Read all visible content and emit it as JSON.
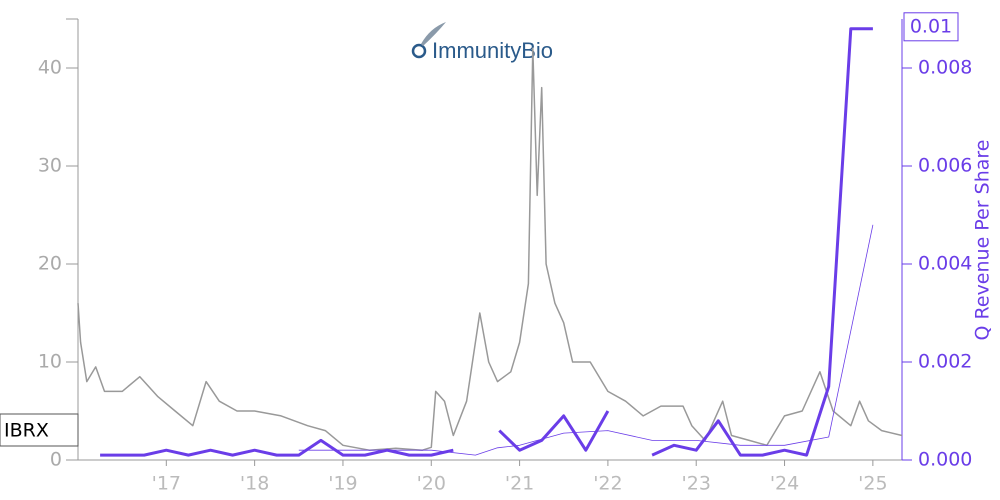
{
  "chart_data": {
    "type": "line",
    "logo": "ImmunityBio",
    "y2label": "Q Revenue Per Share",
    "xlim": [
      2016.0,
      2025.33
    ],
    "xticks": [
      {
        "value": 2017,
        "label": "'17"
      },
      {
        "value": 2018,
        "label": "'18"
      },
      {
        "value": 2019,
        "label": "'19"
      },
      {
        "value": 2020,
        "label": "'20"
      },
      {
        "value": 2021,
        "label": "'21"
      },
      {
        "value": 2022,
        "label": "'22"
      },
      {
        "value": 2023,
        "label": "'23"
      },
      {
        "value": 2024,
        "label": "'24"
      },
      {
        "value": 2025,
        "label": "'25"
      }
    ],
    "ylim": [
      0,
      45
    ],
    "yticks": [
      0,
      10,
      20,
      30,
      40
    ],
    "y2lim": [
      0,
      0.009
    ],
    "y2ticks": [
      {
        "value": 0,
        "label": "0.000"
      },
      0.002,
      0.004,
      0.006,
      0.008
    ],
    "series": [
      {
        "name": "IBRX",
        "color": "#999999",
        "width": 1.5,
        "x": [
          2016.0,
          2016.03,
          2016.1,
          2016.2,
          2016.3,
          2016.5,
          2016.7,
          2016.9,
          2017.1,
          2017.3,
          2017.45,
          2017.6,
          2017.8,
          2018.0,
          2018.3,
          2018.6,
          2018.8,
          2019.0,
          2019.3,
          2019.6,
          2019.9,
          2020.0,
          2020.05,
          2020.15,
          2020.25,
          2020.4,
          2020.5,
          2020.55,
          2020.65,
          2020.75,
          2020.9,
          2021.0,
          2021.1,
          2021.15,
          2021.2,
          2021.25,
          2021.3,
          2021.4,
          2021.5,
          2021.6,
          2021.8,
          2022.0,
          2022.2,
          2022.4,
          2022.6,
          2022.85,
          2022.95,
          2023.1,
          2023.3,
          2023.4,
          2023.6,
          2023.8,
          2024.0,
          2024.2,
          2024.4,
          2024.55,
          2024.75,
          2024.85,
          2024.95,
          2025.1,
          2025.33
        ],
        "values": [
          16,
          12,
          8,
          9.5,
          7,
          7,
          8.5,
          6.5,
          5,
          3.5,
          8,
          6,
          5,
          5,
          4.5,
          3.5,
          3,
          1.5,
          1,
          1.2,
          1.0,
          1.3,
          7,
          6,
          2.5,
          6,
          12,
          15,
          10,
          8,
          9,
          12,
          18,
          42,
          27,
          38,
          20,
          16,
          14,
          10,
          10,
          7,
          6,
          4.5,
          5.5,
          5.5,
          3.5,
          2,
          6,
          2.5,
          2,
          1.5,
          4.5,
          5,
          9,
          5,
          3.5,
          6,
          4,
          3,
          2.5
        ]
      },
      {
        "axis": "y2",
        "color": "#6a3de8",
        "width": 3,
        "x": [
          2016.25,
          2016.5,
          2016.75,
          2017.0,
          2017.25,
          2017.5,
          2017.75,
          2018.0,
          2018.25,
          2018.5,
          2018.75,
          2019.0,
          2019.25,
          2019.5,
          2019.75,
          2020.0,
          2020.25,
          2020.5,
          2020.77,
          2021.0,
          2021.25,
          2021.5,
          2021.75,
          2022.0,
          2022.25,
          2022.5,
          2022.75,
          2023.0,
          2023.25,
          2023.5,
          2023.75,
          2024.0,
          2024.25,
          2024.5,
          2024.75,
          2025.0
        ],
        "values": [
          0.0001,
          0.0001,
          0.0001,
          0.0002,
          0.0001,
          0.0002,
          0.0001,
          0.0002,
          0.0001,
          0.0001,
          0.0004,
          0.0001,
          0.0001,
          0.0002,
          0.0001,
          0.0001,
          0.0002,
          null,
          0.0006,
          0.0002,
          0.0004,
          0.0009,
          0.0002,
          0.001,
          null,
          0.0001,
          0.0003,
          0.0002,
          0.0008,
          0.0001,
          0.0001,
          0.0002,
          0.0001,
          0.0015,
          0.0088,
          0.0088
        ],
        "value_labels": [
          null,
          null,
          null,
          null,
          null,
          null,
          null,
          null,
          null,
          null,
          null,
          null,
          null,
          null,
          null,
          null,
          null,
          null,
          null,
          null,
          null,
          null,
          null,
          null,
          null,
          null,
          null,
          null,
          null,
          null,
          null,
          null,
          null,
          null,
          null,
          "0.01"
        ]
      },
      {
        "axis": "y2",
        "color": "#6a3de8",
        "width": 0.8,
        "x": [
          2018.5,
          2019.0,
          2019.5,
          2020.0,
          2020.5,
          2020.75,
          2021.0,
          2021.5,
          2022.0,
          2022.5,
          2023.0,
          2023.5,
          2024.0,
          2024.5,
          2025.0
        ],
        "values": [
          0.0002,
          0.0002,
          0.0002,
          0.0002,
          0.0001,
          0.00025,
          0.0003,
          0.00055,
          0.0006,
          0.0004,
          0.0004,
          0.0003,
          0.0003,
          0.00047,
          0.0048
        ]
      }
    ]
  }
}
